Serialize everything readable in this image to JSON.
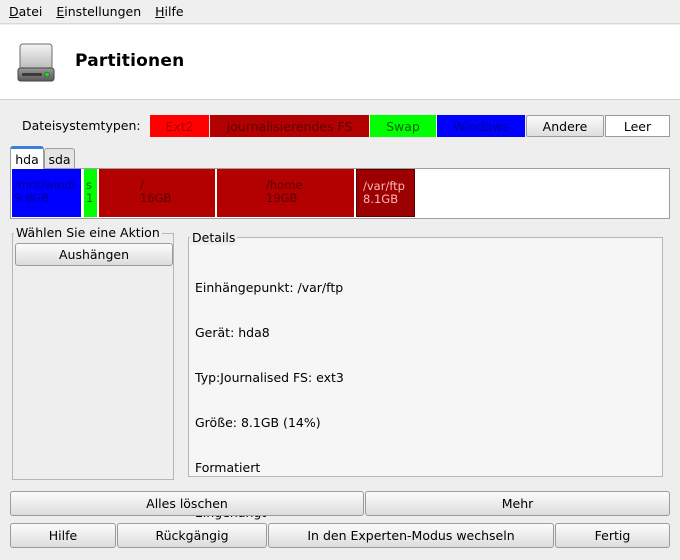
{
  "menubar": {
    "items": [
      {
        "underline": "D",
        "rest": "atei"
      },
      {
        "underline": "E",
        "rest": "instellungen"
      },
      {
        "underline": "H",
        "rest": "ilfe"
      }
    ]
  },
  "header": {
    "title": "Partitionen",
    "icon": "hard-drive-icon"
  },
  "fs_types": {
    "label": "Dateisystemtypen:",
    "ext2": "Ext2",
    "journalised": "Journalisierendes FS",
    "swap": "Swap",
    "windows": "Windows",
    "other": "Andere",
    "empty": "Leer"
  },
  "colors": {
    "ext2": "#ff0000",
    "journalised": "#b30000",
    "swap": "#00ff00",
    "windows": "#0000ff",
    "selected_tab_accent": "#3c7de0"
  },
  "tabs": {
    "hda": "hda",
    "sda": "sda"
  },
  "partitions": [
    {
      "mount": "/mnt/windi",
      "size": "9.8GB",
      "type": "windows"
    },
    {
      "mount": "s",
      "size": "1",
      "type": "swap"
    },
    {
      "mount": "/",
      "size": "16GB",
      "type": "journalised"
    },
    {
      "mount": "/home",
      "size": "19GB",
      "type": "journalised"
    },
    {
      "mount": "/var/ftp",
      "size": "8.1GB",
      "type": "journalised",
      "selected": true
    }
  ],
  "actions": {
    "legend": "Wählen Sie eine Aktion",
    "unmount": "Aushängen"
  },
  "details": {
    "legend": "Details",
    "mount_point": "Einhängepunkt: /var/ftp",
    "device": "Gerät: hda8",
    "type": "Typ:Journalised FS: ext3",
    "size": "Größe: 8.1GB (14%)",
    "formatted": "Formatiert",
    "mounted": "Eingehängt"
  },
  "buttons": {
    "clear_all": "Alles löschen",
    "more": "Mehr",
    "help": "Hilfe",
    "undo": "Rückgängig",
    "expert": "In den Experten-Modus wechseln",
    "done": "Fertig"
  }
}
